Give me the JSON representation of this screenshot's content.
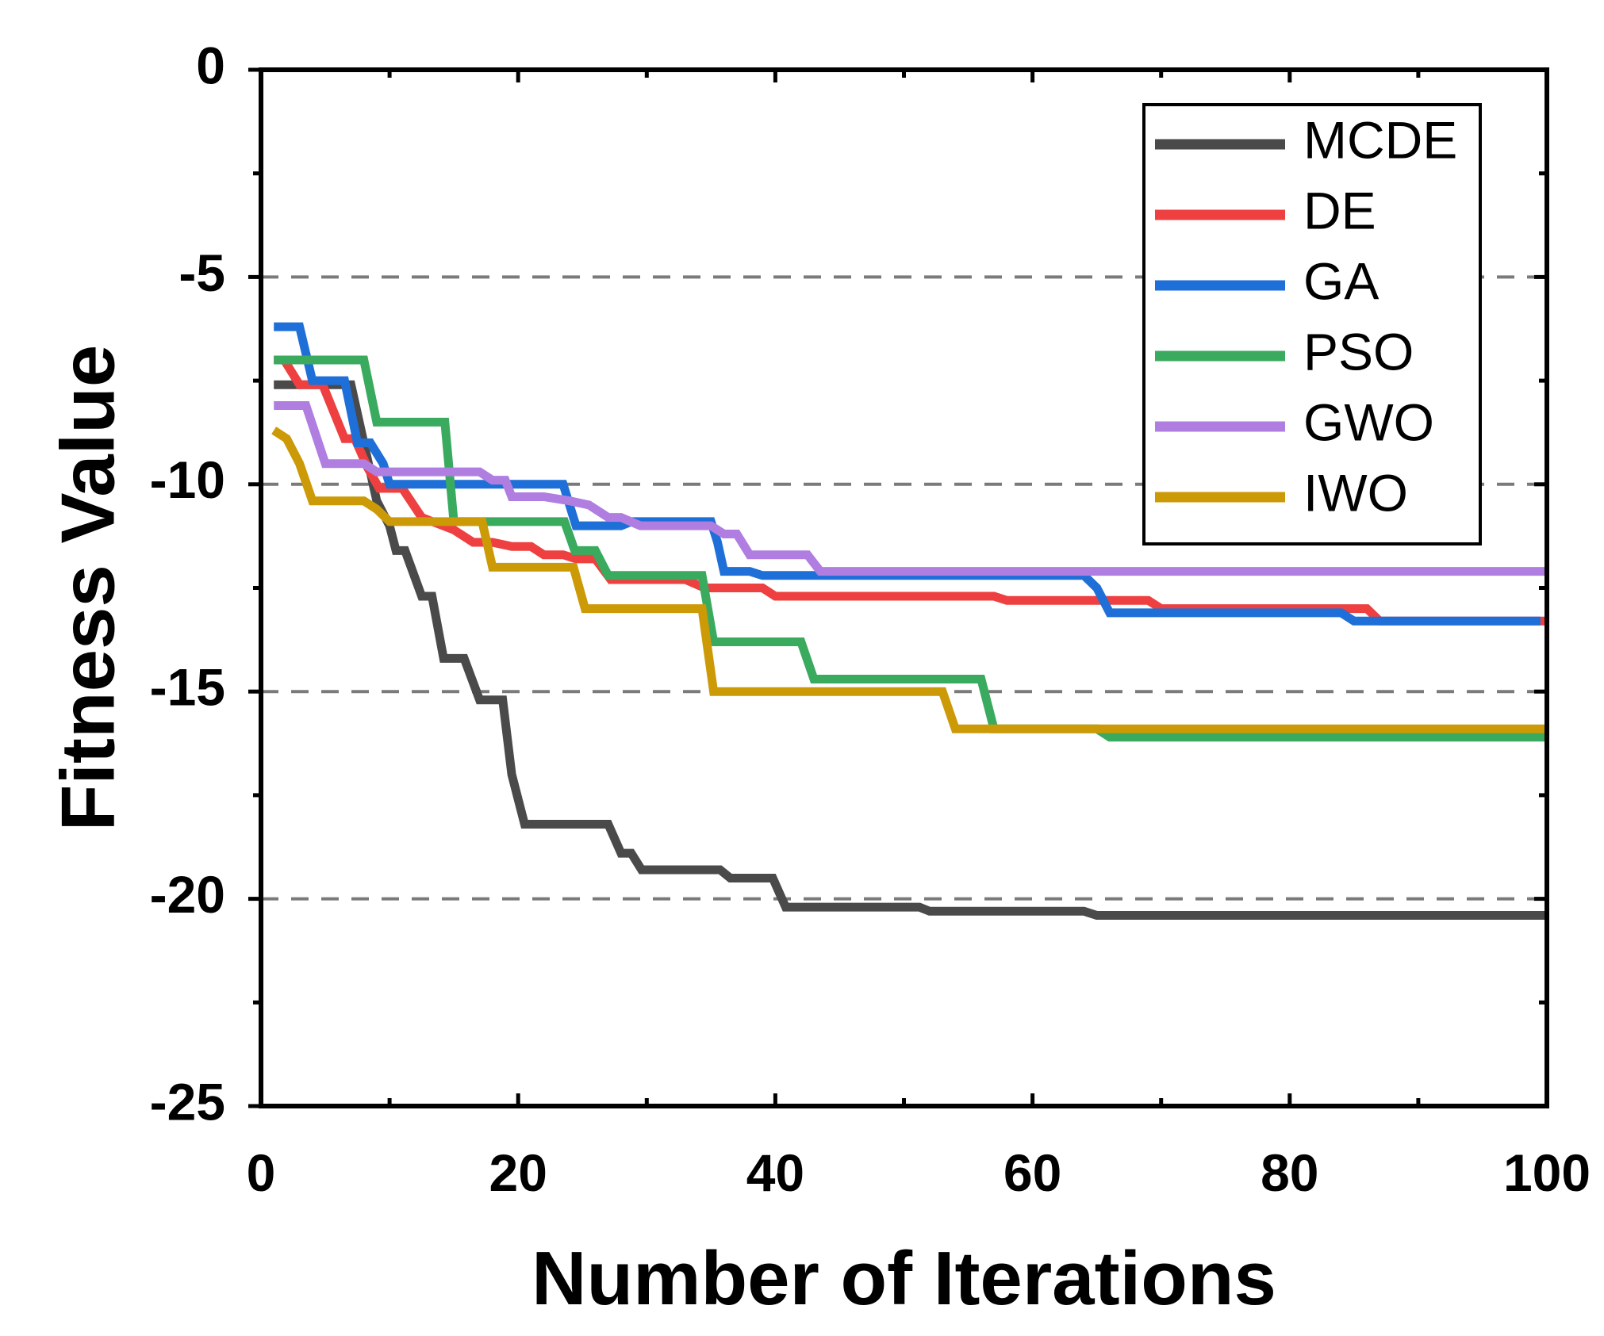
{
  "chart_data": {
    "type": "line",
    "xlabel": "Number of Iterations",
    "ylabel": "Fitness Value",
    "xlim": [
      0,
      100
    ],
    "ylim": [
      -25,
      0
    ],
    "xticks": [
      0,
      20,
      40,
      60,
      80,
      100
    ],
    "xtick_labels": [
      "0",
      "20",
      "40",
      "60",
      "80",
      "100"
    ],
    "yticks": [
      0,
      -5,
      -10,
      -15,
      -20,
      -25
    ],
    "ytick_labels": [
      "0",
      "-5",
      "-10",
      "-15",
      "-20",
      "-25"
    ],
    "grid": "horizontal dashed at -5, -10, -15, -20",
    "gridlines": [
      -5,
      -10,
      -15,
      -20
    ],
    "legend_position": "top-right",
    "series": [
      {
        "name": "MCDE",
        "color": "#4a4a4a",
        "points": [
          [
            1,
            -7.6
          ],
          [
            7,
            -7.6
          ],
          [
            8,
            -9.0
          ],
          [
            9,
            -10.4
          ],
          [
            10,
            -11.0
          ],
          [
            10.5,
            -11.6
          ],
          [
            11.2,
            -11.6
          ],
          [
            12.5,
            -12.7
          ],
          [
            13.3,
            -12.7
          ],
          [
            14.2,
            -14.2
          ],
          [
            15.8,
            -14.2
          ],
          [
            17,
            -15.2
          ],
          [
            18.8,
            -15.2
          ],
          [
            19.5,
            -17.0
          ],
          [
            20.5,
            -18.2
          ],
          [
            27,
            -18.2
          ],
          [
            28,
            -18.9
          ],
          [
            28.8,
            -18.9
          ],
          [
            29.6,
            -19.3
          ],
          [
            35.7,
            -19.3
          ],
          [
            36.5,
            -19.5
          ],
          [
            39.8,
            -19.5
          ],
          [
            40.8,
            -20.2
          ],
          [
            51.2,
            -20.2
          ],
          [
            52,
            -20.3
          ],
          [
            64,
            -20.3
          ],
          [
            65,
            -20.4
          ],
          [
            100,
            -20.4
          ]
        ]
      },
      {
        "name": "DE",
        "color": "#ee4040",
        "points": [
          [
            1,
            -7.0
          ],
          [
            1.8,
            -7.0
          ],
          [
            3,
            -7.6
          ],
          [
            4.8,
            -7.6
          ],
          [
            6.5,
            -8.9
          ],
          [
            7.3,
            -8.9
          ],
          [
            8.3,
            -9.6
          ],
          [
            9.2,
            -10.1
          ],
          [
            11,
            -10.1
          ],
          [
            12.5,
            -10.8
          ],
          [
            15,
            -11.1
          ],
          [
            16.5,
            -11.4
          ],
          [
            18,
            -11.4
          ],
          [
            19.5,
            -11.5
          ],
          [
            21,
            -11.5
          ],
          [
            22,
            -11.7
          ],
          [
            23.5,
            -11.7
          ],
          [
            24.5,
            -11.8
          ],
          [
            26,
            -11.8
          ],
          [
            27.2,
            -12.3
          ],
          [
            33,
            -12.3
          ],
          [
            34.5,
            -12.5
          ],
          [
            39,
            -12.5
          ],
          [
            40,
            -12.7
          ],
          [
            57,
            -12.7
          ],
          [
            58,
            -12.8
          ],
          [
            69,
            -12.8
          ],
          [
            70,
            -13.0
          ],
          [
            86,
            -13.0
          ],
          [
            87,
            -13.3
          ],
          [
            100,
            -13.3
          ]
        ]
      },
      {
        "name": "GA",
        "color": "#1f6fd8",
        "points": [
          [
            1,
            -6.2
          ],
          [
            3,
            -6.2
          ],
          [
            4,
            -7.5
          ],
          [
            6.5,
            -7.5
          ],
          [
            7.5,
            -9.0
          ],
          [
            8.5,
            -9.0
          ],
          [
            9.5,
            -9.5
          ],
          [
            10,
            -10.0
          ],
          [
            23.5,
            -10.0
          ],
          [
            24.5,
            -11.0
          ],
          [
            28,
            -11.0
          ],
          [
            28.8,
            -10.9
          ],
          [
            35,
            -10.9
          ],
          [
            35.5,
            -11.4
          ],
          [
            36,
            -12.1
          ],
          [
            38,
            -12.1
          ],
          [
            39,
            -12.2
          ],
          [
            64,
            -12.2
          ],
          [
            65,
            -12.5
          ],
          [
            66,
            -13.1
          ],
          [
            84,
            -13.1
          ],
          [
            85,
            -13.3
          ],
          [
            99.5,
            -13.3
          ]
        ]
      },
      {
        "name": "PSO",
        "color": "#3aaa5f",
        "points": [
          [
            1,
            -7.0
          ],
          [
            8,
            -7.0
          ],
          [
            9,
            -8.5
          ],
          [
            14.3,
            -8.5
          ],
          [
            15,
            -10.9
          ],
          [
            23.6,
            -10.9
          ],
          [
            24.4,
            -11.6
          ],
          [
            26,
            -11.6
          ],
          [
            27,
            -12.2
          ],
          [
            34.3,
            -12.2
          ],
          [
            35.2,
            -13.8
          ],
          [
            42,
            -13.8
          ],
          [
            43,
            -14.7
          ],
          [
            56,
            -14.7
          ],
          [
            57,
            -15.9
          ],
          [
            65,
            -15.9
          ],
          [
            66,
            -16.1
          ],
          [
            100,
            -16.1
          ]
        ]
      },
      {
        "name": "GWO",
        "color": "#b07ee0",
        "points": [
          [
            1,
            -8.1
          ],
          [
            3.5,
            -8.1
          ],
          [
            5,
            -9.5
          ],
          [
            8,
            -9.5
          ],
          [
            9,
            -9.7
          ],
          [
            17,
            -9.7
          ],
          [
            18,
            -9.9
          ],
          [
            19,
            -9.9
          ],
          [
            19.5,
            -10.3
          ],
          [
            22,
            -10.3
          ],
          [
            24,
            -10.4
          ],
          [
            25.5,
            -10.5
          ],
          [
            27,
            -10.8
          ],
          [
            28,
            -10.8
          ],
          [
            29.5,
            -11.0
          ],
          [
            35,
            -11.0
          ],
          [
            36,
            -11.2
          ],
          [
            37,
            -11.2
          ],
          [
            38,
            -11.7
          ],
          [
            42.5,
            -11.7
          ],
          [
            43.5,
            -12.1
          ],
          [
            100,
            -12.1
          ]
        ]
      },
      {
        "name": "IWO",
        "color": "#cc9a06",
        "points": [
          [
            1,
            -8.7
          ],
          [
            2,
            -8.9
          ],
          [
            3,
            -9.5
          ],
          [
            4,
            -10.4
          ],
          [
            8,
            -10.4
          ],
          [
            9,
            -10.6
          ],
          [
            10,
            -10.9
          ],
          [
            17.2,
            -10.9
          ],
          [
            18,
            -12.0
          ],
          [
            24.3,
            -12.0
          ],
          [
            25.2,
            -13.0
          ],
          [
            34.3,
            -13.0
          ],
          [
            35.2,
            -15.0
          ],
          [
            53,
            -15.0
          ],
          [
            54,
            -15.9
          ],
          [
            100,
            -15.9
          ]
        ]
      }
    ]
  }
}
